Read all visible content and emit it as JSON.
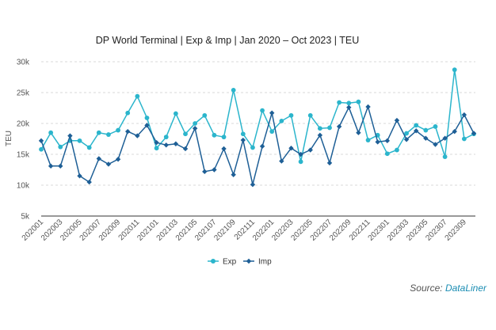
{
  "chart_data": {
    "type": "line",
    "title": "DP World Terminal | Exp & Imp | Jan 2020 – Oct 2023 | TEU",
    "ylabel": "TEU",
    "xlabel": "",
    "ylim": [
      5000,
      30000
    ],
    "yticks": [
      5000,
      10000,
      15000,
      20000,
      25000,
      30000
    ],
    "ytick_labels": [
      "5k",
      "10k",
      "15k",
      "20k",
      "25k",
      "30k"
    ],
    "x": [
      "202001",
      "202002",
      "202003",
      "202004",
      "202005",
      "202006",
      "202007",
      "202008",
      "202009",
      "202010",
      "202011",
      "202012",
      "202101",
      "202102",
      "202103",
      "202104",
      "202105",
      "202106",
      "202107",
      "202108",
      "202109",
      "202110",
      "202111",
      "202112",
      "202201",
      "202202",
      "202203",
      "202204",
      "202205",
      "202206",
      "202207",
      "202208",
      "202209",
      "202210",
      "202211",
      "202212",
      "202301",
      "202302",
      "202303",
      "202304",
      "202305",
      "202306",
      "202307",
      "202308",
      "202309",
      "202310"
    ],
    "x_tick_labels": [
      "202001",
      "202003",
      "202005",
      "202007",
      "202009",
      "202011",
      "202101",
      "202103",
      "202105",
      "202107",
      "202109",
      "202111",
      "202201",
      "202203",
      "202205",
      "202207",
      "202209",
      "202211",
      "202301",
      "202303",
      "202305",
      "202307",
      "202309"
    ],
    "grid": true,
    "legend_position": "bottom-center",
    "series": [
      {
        "name": "Exp",
        "color": "#2bb5cc",
        "values": [
          15800,
          18500,
          16200,
          17200,
          17200,
          16100,
          18500,
          18200,
          18900,
          21700,
          24400,
          20900,
          16000,
          17800,
          21600,
          18300,
          20000,
          21300,
          18100,
          17800,
          25400,
          18300,
          16100,
          22100,
          18700,
          20400,
          21300,
          13800,
          21300,
          19200,
          19300,
          23400,
          23300,
          23500,
          17300,
          18100,
          15100,
          15700,
          18400,
          19700,
          18900,
          19500,
          14600,
          28700,
          17500,
          18300
        ]
      },
      {
        "name": "Imp",
        "color": "#1e5f96",
        "values": [
          17200,
          13100,
          13100,
          18000,
          11500,
          10500,
          14300,
          13400,
          14200,
          18700,
          18000,
          19700,
          16900,
          16500,
          16700,
          15900,
          19200,
          12200,
          12500,
          15900,
          11700,
          17300,
          10100,
          16300,
          21700,
          13900,
          16000,
          15000,
          15700,
          18100,
          13600,
          19500,
          22600,
          18500,
          22700,
          17000,
          17200,
          20500,
          17400,
          18800,
          17600,
          16600,
          17600,
          18700,
          21400,
          18400
        ]
      }
    ]
  },
  "source": {
    "prefix": "Source: ",
    "brand": "DataLiner"
  }
}
